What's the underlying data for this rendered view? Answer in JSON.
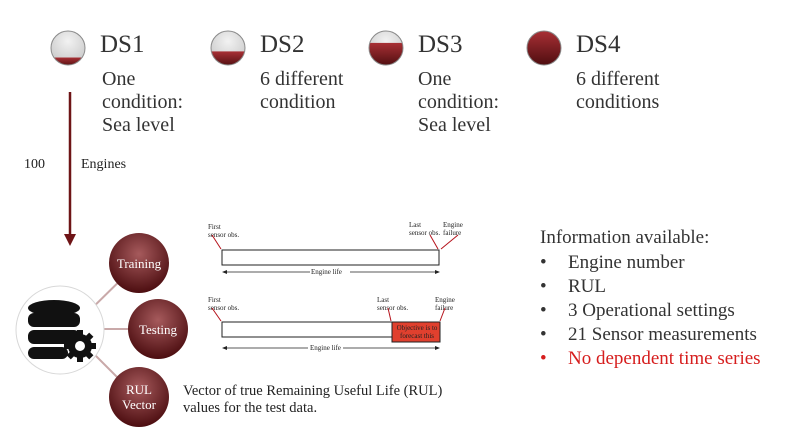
{
  "datasets": [
    {
      "label": "DS1",
      "desc": "One\ncondition:\nSea level",
      "fill": 0.22
    },
    {
      "label": "DS2",
      "desc": "6 different\ncondition",
      "fill": 0.4
    },
    {
      "label": "DS3",
      "desc": "One\ncondition:\nSea level",
      "fill": 0.65
    },
    {
      "label": "DS4",
      "desc": "6 different\nconditions",
      "fill": 1.0
    }
  ],
  "engines": {
    "count": "100",
    "label": "Engines"
  },
  "branches": {
    "training": "Training",
    "testing": "Testing",
    "rul_line1": "RUL",
    "rul_line2": "Vector"
  },
  "training_timeline": {
    "first": "First\nsensor obs.",
    "last": "Last\nsensor obs.",
    "failure": "Engine\nfailure",
    "life": "Engine life"
  },
  "testing_timeline": {
    "first": "First\nsensor obs.",
    "last": "Last\nsensor obs.",
    "failure": "Engine\nfailure",
    "objective": "Objective is to\nforecast this",
    "life": "Engine life"
  },
  "info": {
    "title": "Information available:",
    "items": [
      {
        "text": "Engine number",
        "highlight": false
      },
      {
        "text": "RUL",
        "highlight": false
      },
      {
        "text": "3 Operational settings",
        "highlight": false
      },
      {
        "text": "21 Sensor measurements",
        "highlight": false
      },
      {
        "text": "No dependent time series",
        "highlight": true
      }
    ]
  },
  "rul_caption": "Vector of true Remaining Useful Life (RUL)\nvalues for the test data.",
  "colors": {
    "maroon": "#6e1416",
    "objective_red": "#e0402e",
    "highlight_red": "#d61d1d"
  }
}
